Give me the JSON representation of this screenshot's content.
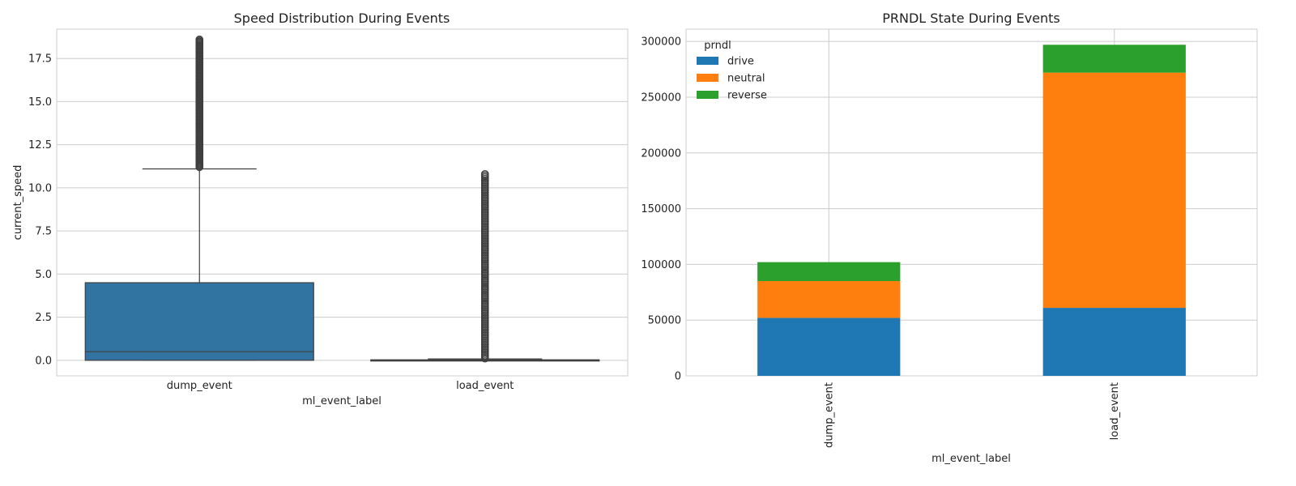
{
  "chart_data": [
    {
      "type": "box",
      "title": "Speed Distribution During Events",
      "xlabel": "ml_event_label",
      "ylabel": "current_speed",
      "ylim": [
        -0.9,
        19.2
      ],
      "yticks": [
        "0.0",
        "2.5",
        "5.0",
        "7.5",
        "10.0",
        "12.5",
        "15.0",
        "17.5"
      ],
      "grid": true,
      "box_color": "#3274a1",
      "categories": [
        "dump_event",
        "load_event"
      ],
      "boxes": [
        {
          "category": "dump_event",
          "whisker_low": 0.0,
          "q1": 0.0,
          "median": 0.5,
          "q3": 4.5,
          "whisker_high": 11.1,
          "outliers_min": 11.2,
          "outliers_max": 18.6
        },
        {
          "category": "load_event",
          "whisker_low": 0.0,
          "q1": 0.0,
          "median": 0.0,
          "q3": 0.03,
          "whisker_high": 0.08,
          "outliers_min": 0.1,
          "outliers_max": 10.8
        }
      ]
    },
    {
      "type": "bar",
      "stacked": true,
      "title": "PRNDL State During Events",
      "xlabel": "ml_event_label",
      "ylabel": "",
      "ylim": [
        0,
        311000
      ],
      "yticks": [
        "0",
        "50000",
        "100000",
        "150000",
        "200000",
        "250000",
        "300000"
      ],
      "grid": true,
      "legend_title": "prndl",
      "legend_position": "top-left",
      "categories": [
        "dump_event",
        "load_event"
      ],
      "series": [
        {
          "name": "drive",
          "color": "#1f77b4",
          "values": [
            52000,
            61000
          ]
        },
        {
          "name": "neutral",
          "color": "#ff7f0e",
          "values": [
            33000,
            211000
          ]
        },
        {
          "name": "reverse",
          "color": "#2ca02c",
          "values": [
            17000,
            25000
          ]
        }
      ]
    }
  ]
}
